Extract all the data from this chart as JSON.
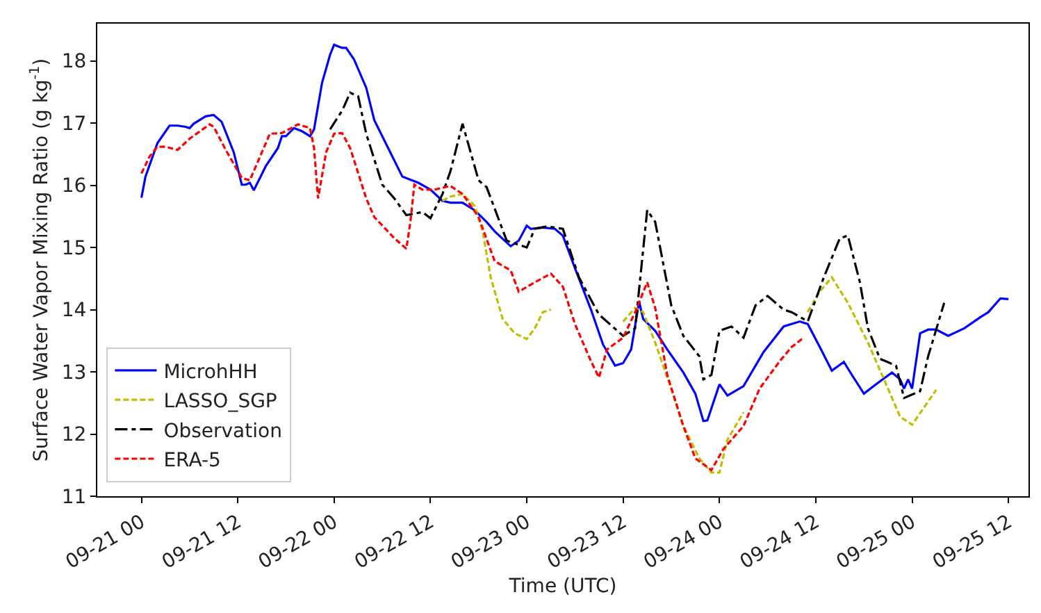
{
  "chart_data": {
    "type": "line",
    "xlabel": "Time (UTC)",
    "ylabel": "Surface Water Vapor Mixing Ratio (g kg$^{-1}$)",
    "xlim": [
      "--09-20T18:30",
      "--09-25T14:30"
    ],
    "ylim": [
      11,
      18.6
    ],
    "xticks": [
      {
        "value": "--09-21T00:00",
        "label": "09-21 00"
      },
      {
        "value": "--09-21T12:00",
        "label": "09-21 12"
      },
      {
        "value": "--09-22T00:00",
        "label": "09-22 00"
      },
      {
        "value": "--09-22T12:00",
        "label": "09-22 12"
      },
      {
        "value": "--09-23T00:00",
        "label": "09-23 00"
      },
      {
        "value": "--09-23T12:00",
        "label": "09-23 12"
      },
      {
        "value": "--09-24T00:00",
        "label": "09-24 00"
      },
      {
        "value": "--09-24T12:00",
        "label": "09-24 12"
      },
      {
        "value": "--09-25T00:00",
        "label": "09-25 00"
      },
      {
        "value": "--09-25T12:00",
        "label": "09-25 12"
      }
    ],
    "yticks": [
      11,
      12,
      13,
      14,
      15,
      16,
      17,
      18
    ],
    "legend": "bottom left",
    "series": [
      {
        "name": "MicrohHH",
        "color": "#0000ff",
        "line_style": "solid",
        "x": [
          "--09-21T00:00",
          "--09-21T00:30",
          "--09-21T02:00",
          "--09-21T03:30",
          "--09-21T04:30",
          "--09-21T05:30",
          "--09-21T06:00",
          "--09-21T06:30",
          "--09-21T08:00",
          "--09-21T09:00",
          "--09-21T10:00",
          "--09-21T11:30",
          "--09-21T12:30",
          "--09-21T13:00",
          "--09-21T13:30",
          "--09-21T14:00",
          "--09-21T15:30",
          "--09-21T17:00",
          "--09-21T17:30",
          "--09-21T18:00",
          "--09-21T19:00",
          "--09-21T20:00",
          "--09-21T21:00",
          "--09-21T21:30",
          "--09-21T22:30",
          "--09-21T23:30",
          "--09-22T00:00",
          "--09-22T01:00",
          "--09-22T01:30",
          "--09-22T02:30",
          "--09-22T04:00",
          "--09-22T05:00",
          "--09-22T07:00",
          "--09-22T08:30",
          "--09-22T10:30",
          "--09-22T12:00",
          "--09-22T13:30",
          "--09-22T14:30",
          "--09-22T16:00",
          "--09-22T17:30",
          "--09-22T19:00",
          "--09-22T20:00",
          "--09-22T22:00",
          "--09-22T23:00",
          "--09-23T00:00",
          "--09-23T00:30",
          "--09-23T02:00",
          "--09-23T03:30",
          "--09-23T04:30",
          "--09-23T06:00",
          "--09-23T08:00",
          "--09-23T09:30",
          "--09-23T11:00",
          "--09-23T12:00",
          "--09-23T13:00",
          "--09-23T14:00",
          "--09-23T14:30",
          "--09-23T16:00",
          "--09-23T17:30",
          "--09-23T19:30",
          "--09-23T21:00",
          "--09-23T22:00",
          "--09-23T22:30",
          "--09-24T00:00",
          "--09-24T01:00",
          "--09-24T03:00",
          "--09-24T05:30",
          "--09-24T08:00",
          "--09-24T10:00",
          "--09-24T11:00",
          "--09-24T12:30",
          "--09-24T14:00",
          "--09-24T15:30",
          "--09-24T16:30",
          "--09-24T18:00",
          "--09-24T19:30",
          "--09-24T21:30",
          "--09-24T22:30",
          "--09-24T23:00",
          "--09-24T23:30",
          "--09-25T00:00",
          "--09-25T01:00",
          "--09-25T02:00",
          "--09-25T03:00",
          "--09-25T04:30",
          "--09-25T06:30",
          "--09-25T08:30",
          "--09-25T09:30",
          "--09-25T11:00",
          "--09-25T12:00"
        ],
        "values": [
          15.8,
          16.14,
          16.68,
          16.96,
          16.96,
          16.94,
          16.92,
          16.99,
          17.11,
          17.13,
          17.02,
          16.53,
          16.01,
          16.01,
          16.04,
          15.92,
          16.31,
          16.6,
          16.79,
          16.79,
          16.92,
          16.87,
          16.79,
          16.9,
          17.65,
          18.1,
          18.26,
          18.21,
          18.21,
          18.02,
          17.57,
          17.05,
          16.53,
          16.14,
          16.04,
          15.93,
          15.75,
          15.72,
          15.72,
          15.6,
          15.41,
          15.26,
          15.02,
          15.11,
          15.35,
          15.3,
          15.32,
          15.3,
          15.19,
          14.67,
          14.0,
          13.44,
          13.1,
          13.14,
          13.36,
          14.13,
          13.85,
          13.66,
          13.36,
          12.99,
          12.65,
          12.21,
          12.22,
          12.8,
          12.62,
          12.77,
          13.32,
          13.73,
          13.81,
          13.77,
          13.4,
          13.02,
          13.16,
          12.95,
          12.65,
          12.8,
          12.99,
          12.88,
          12.73,
          12.88,
          12.73,
          13.62,
          13.68,
          13.68,
          13.58,
          13.7,
          13.88,
          13.96,
          14.18,
          14.17
        ]
      },
      {
        "name": "LASSO_SGP",
        "color": "#bfbf00",
        "line_style": "dashed",
        "x": [
          "--09-22T13:30",
          "--09-22T14:30",
          "--09-22T16:00",
          "--09-22T17:30",
          "--09-22T18:30",
          "--09-22T19:30",
          "--09-22T21:00",
          "--09-22T22:30",
          "--09-23T00:00",
          "--09-23T01:00",
          "--09-23T02:00",
          "--09-23T03:00",
          "--09-23T07:00",
          "--09-23T12:00",
          "--09-23T13:30",
          "--09-23T14:30",
          "--09-23T16:00",
          "--09-23T18:00",
          "--09-23T19:30",
          "--09-23T21:30",
          "--09-23T23:00",
          "--09-24T00:00",
          "--09-24T01:00",
          "--09-24T03:00",
          "--09-24T07:00",
          "--09-24T11:00",
          "--09-24T12:30",
          "--09-24T14:00",
          "--09-24T16:00",
          "--09-24T18:30",
          "--09-24T20:30",
          "--09-24T22:30",
          "--09-25T00:00",
          "--09-25T01:30",
          "--09-25T03:00"
        ],
        "values": [
          15.75,
          15.82,
          15.86,
          15.67,
          15.26,
          14.52,
          13.85,
          13.62,
          13.53,
          13.7,
          13.96,
          14.0,
          null,
          13.81,
          14.03,
          13.96,
          13.47,
          12.73,
          12.13,
          11.61,
          11.38,
          11.38,
          11.91,
          12.35,
          null,
          13.96,
          14.29,
          14.52,
          14.11,
          13.47,
          12.88,
          12.28,
          12.15,
          12.43,
          12.71
        ]
      },
      {
        "name": "Observation",
        "color": "#000000",
        "line_style": "dashdot",
        "x": [
          "--09-21T23:30",
          "--09-22T01:00",
          "--09-22T02:00",
          "--09-22T03:00",
          "--09-22T04:00",
          "--09-22T06:00",
          "--09-22T07:30",
          "--09-22T09:00",
          "--09-22T11:00",
          "--09-22T12:00",
          "--09-22T13:30",
          "--09-22T14:30",
          "--09-22T16:00",
          "--09-22T18:00",
          "--09-22T19:00",
          "--09-22T21:30",
          "--09-23T00:00",
          "--09-23T01:00",
          "--09-23T02:30",
          "--09-23T04:30",
          "--09-23T06:30",
          "--09-23T09:00",
          "--09-23T12:00",
          "--09-23T13:30",
          "--09-23T15:00",
          "--09-23T16:00",
          "--09-23T18:00",
          "--09-23T19:30",
          "--09-23T21:30",
          "--09-23T22:00",
          "--09-23T23:00",
          "--09-24T00:00",
          "--09-24T01:30",
          "--09-24T03:00",
          "--09-24T04:30",
          "--09-24T06:00",
          "--09-24T08:00",
          "--09-24T09:00",
          "--09-24T11:00",
          "--09-24T13:00",
          "--09-24T15:00",
          "--09-24T16:00",
          "--09-24T17:30",
          "--09-24T18:30",
          "--09-24T20:00",
          "--09-24T22:00",
          "--09-24T23:00",
          "--09-25T01:00",
          "--09-25T02:00",
          "--09-25T04:00"
        ],
        "values": [
          16.9,
          17.2,
          17.49,
          17.43,
          16.83,
          16.01,
          15.79,
          15.52,
          15.57,
          15.47,
          15.86,
          16.23,
          16.99,
          16.08,
          15.97,
          15.11,
          15.0,
          15.3,
          15.34,
          15.3,
          14.52,
          13.92,
          13.58,
          13.7,
          15.6,
          15.41,
          14.07,
          13.58,
          13.25,
          12.88,
          12.95,
          13.66,
          13.73,
          13.55,
          14.07,
          14.22,
          14.0,
          13.96,
          13.81,
          14.52,
          15.15,
          15.19,
          14.44,
          13.7,
          13.21,
          13.1,
          12.58,
          12.69,
          13.25,
          14.11
        ]
      },
      {
        "name": "ERA-5",
        "color": "#ff0000",
        "line_style": "dashed",
        "x": [
          "--09-21T00:00",
          "--09-21T01:00",
          "--09-21T02:00",
          "--09-21T03:00",
          "--09-21T04:30",
          "--09-21T06:00",
          "--09-21T08:30",
          "--09-21T09:00",
          "--09-21T10:30",
          "--09-21T12:30",
          "--09-21T13:30",
          "--09-21T15:00",
          "--09-21T16:00",
          "--09-21T17:30",
          "--09-21T19:30",
          "--09-21T21:00",
          "--09-21T21:30",
          "--09-21T22:00",
          "--09-21T23:00",
          "--09-22T00:00",
          "--09-22T01:00",
          "--09-22T02:00",
          "--09-22T04:00",
          "--09-22T05:00",
          "--09-22T07:30",
          "--09-22T09:00",
          "--09-22T09:30",
          "--09-22T10:00",
          "--09-22T11:00",
          "--09-22T12:30",
          "--09-22T14:30",
          "--09-22T16:00",
          "--09-22T18:00",
          "--09-22T20:00",
          "--09-22T22:00",
          "--09-22T23:00",
          "--09-23T01:00",
          "--09-23T03:00",
          "--09-23T04:30",
          "--09-23T06:00",
          "--09-23T08:00",
          "--09-23T09:00",
          "--09-23T10:00",
          "--09-23T12:00",
          "--09-23T13:30",
          "--09-23T15:00",
          "--09-23T16:00",
          "--09-23T17:30",
          "--09-23T19:30",
          "--09-23T21:00",
          "--09-23T23:00",
          "--09-24T00:30",
          "--09-24T03:00",
          "--09-24T05:00",
          "--09-24T07:30",
          "--09-24T09:00",
          "--09-24T10:30"
        ],
        "values": [
          16.19,
          16.46,
          16.62,
          16.62,
          16.57,
          16.75,
          16.98,
          16.94,
          16.57,
          16.12,
          16.08,
          16.53,
          16.83,
          16.84,
          16.98,
          16.92,
          16.6,
          15.79,
          16.53,
          16.83,
          16.84,
          16.6,
          15.79,
          15.49,
          15.15,
          14.98,
          15.41,
          16.01,
          15.93,
          15.93,
          15.99,
          15.86,
          15.49,
          14.78,
          14.63,
          14.29,
          14.44,
          14.58,
          14.37,
          13.77,
          13.17,
          12.91,
          13.36,
          13.55,
          13.96,
          14.44,
          14.03,
          12.95,
          12.13,
          11.61,
          11.42,
          11.76,
          12.13,
          12.73,
          13.17,
          13.4,
          13.55
        ]
      }
    ]
  }
}
